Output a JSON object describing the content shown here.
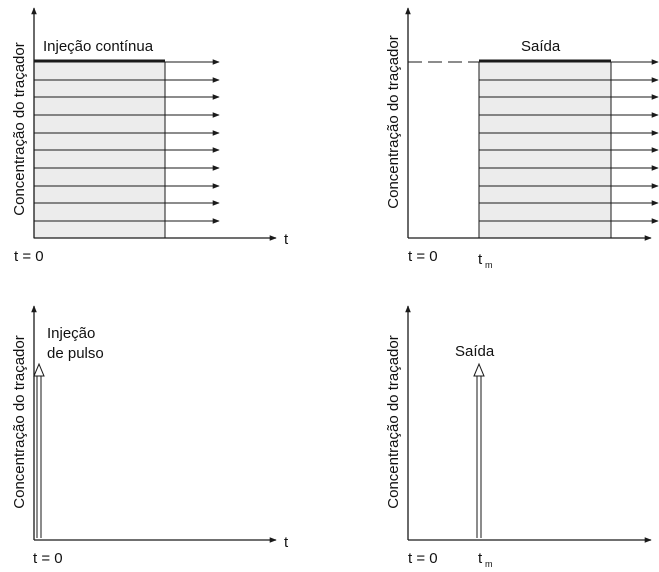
{
  "colors": {
    "ink": "#1a1a1a",
    "fill": "#ececec",
    "paper": "#ffffff"
  },
  "panels": [
    {
      "id": "continuous-input",
      "y_label": "Concentração do traçador",
      "x_label": "t",
      "origin_label": "t = 0",
      "annotation_lines": [
        "Injeção contínua"
      ],
      "time_label": "",
      "time_subscript": ""
    },
    {
      "id": "continuous-output",
      "y_label": "Concentração do traçador",
      "x_label": "",
      "origin_label": "t = 0",
      "annotation_lines": [
        "Saída"
      ],
      "time_label": "t",
      "time_subscript": "m"
    },
    {
      "id": "pulse-input",
      "y_label": "Concentração do traçador",
      "x_label": "t",
      "origin_label": "t = 0",
      "annotation_lines": [
        "Injeção",
        "de pulso"
      ],
      "time_label": "",
      "time_subscript": ""
    },
    {
      "id": "pulse-output",
      "y_label": "Concentração do traçador",
      "x_label": "",
      "origin_label": "t = 0",
      "annotation_lines": [
        "Saída"
      ],
      "time_label": "t",
      "time_subscript": "m"
    }
  ]
}
